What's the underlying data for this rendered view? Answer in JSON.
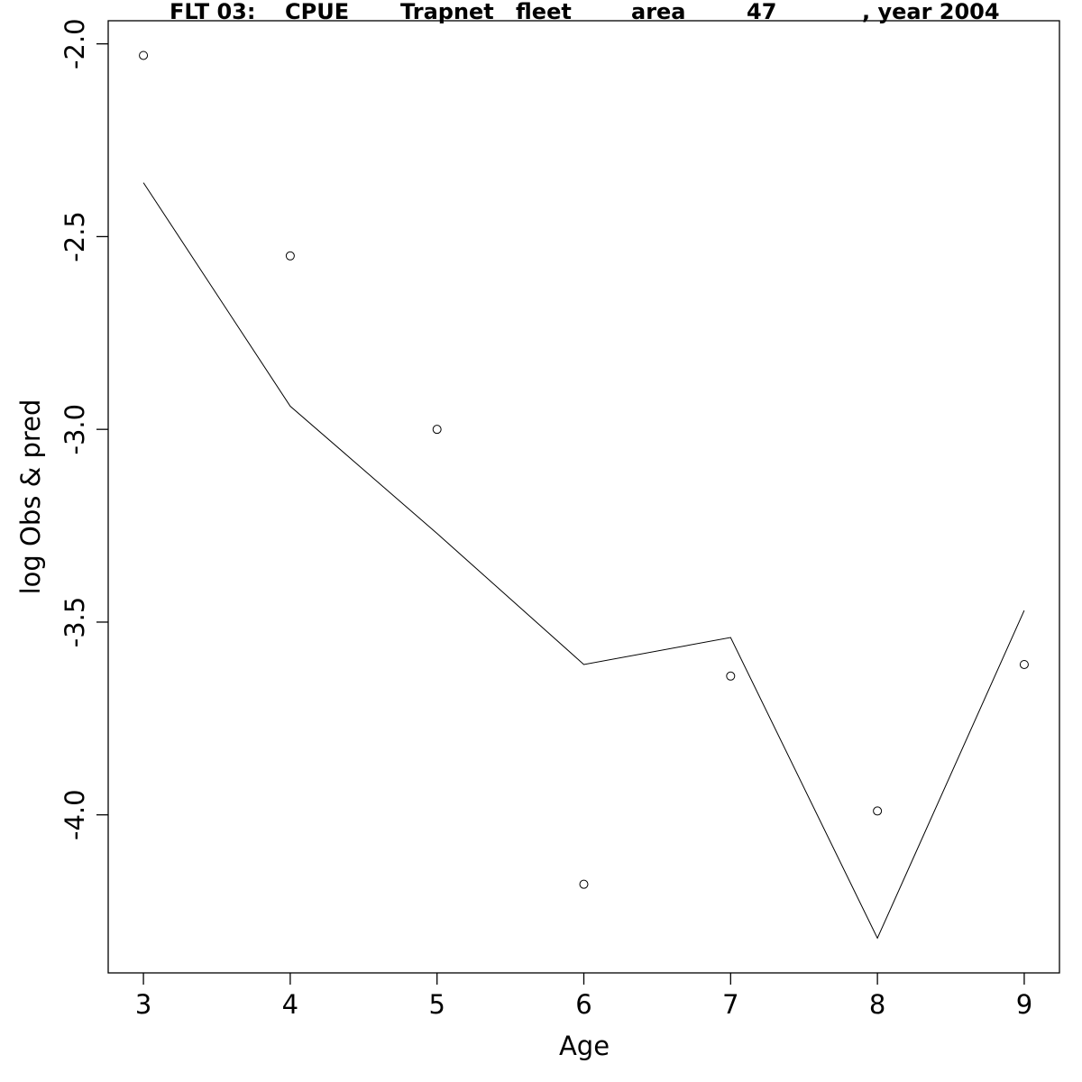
{
  "chart_data": {
    "type": "line",
    "title_parts": [
      "FLT 03:",
      "CPUE",
      "Trapnet",
      "fleet",
      "area",
      "47",
      ", year 2004"
    ],
    "xlabel": "Age",
    "ylabel": "log Obs & pred",
    "xlim": [
      2.76,
      9.24
    ],
    "ylim": [
      -4.41,
      -1.94
    ],
    "x_ticks": [
      3,
      4,
      5,
      6,
      7,
      8,
      9
    ],
    "y_ticks": [
      -2.0,
      -2.5,
      -3.0,
      -3.5,
      -4.0
    ],
    "y_tick_labels": [
      "-2.0",
      "-2.5",
      "-3.0",
      "-3.5",
      "-4.0"
    ],
    "grid": false,
    "series": [
      {
        "style": "points",
        "marker": "open-circle",
        "x": [
          3,
          4,
          5,
          6,
          7,
          8,
          9
        ],
        "y": [
          -2.03,
          -2.55,
          -3.0,
          -4.18,
          -3.64,
          -3.99,
          -3.61
        ]
      },
      {
        "style": "line",
        "x": [
          3,
          4,
          5,
          6,
          7,
          8,
          9
        ],
        "y": [
          -2.36,
          -2.94,
          -3.27,
          -3.61,
          -3.54,
          -4.32,
          -3.47
        ]
      }
    ]
  }
}
